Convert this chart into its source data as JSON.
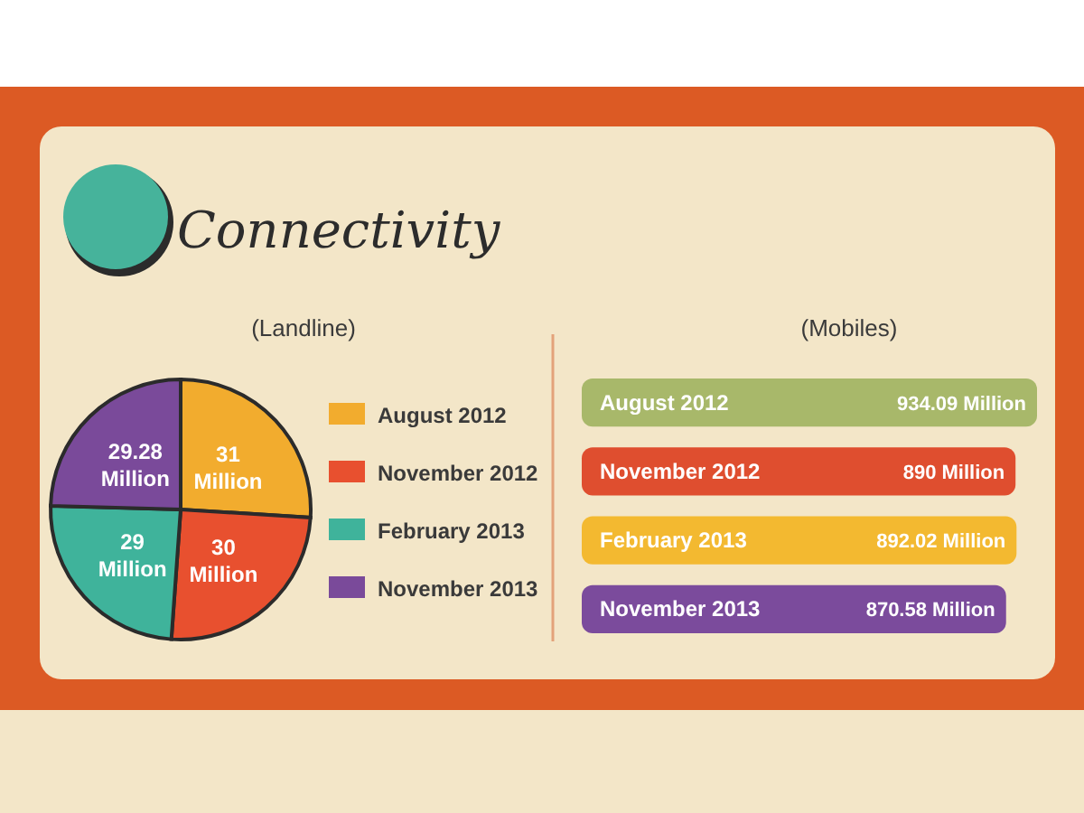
{
  "chart_data": [
    {
      "type": "pie",
      "title": "Connectivity",
      "subtitle": "(Landline)",
      "categories": [
        "August 2012",
        "November 2012",
        "February 2013",
        "November 2013"
      ],
      "values": [
        31,
        30,
        29,
        29.28
      ],
      "value_labels": [
        "31 Million",
        "30 Million",
        "29 Million",
        "29.28 Million"
      ],
      "colors": [
        "#f2ac2e",
        "#e8502f",
        "#3fb39b",
        "#7a4a9a"
      ],
      "legend": "right"
    },
    {
      "type": "bar",
      "orientation": "horizontal",
      "title": "(Mobiles)",
      "categories": [
        "August 2012",
        "November 2012",
        "February 2013",
        "November 2013"
      ],
      "values": [
        934.09,
        890,
        892.02,
        870.58
      ],
      "value_labels": [
        "934.09 Million",
        "890 Million",
        "892.02 Million",
        "870.58 Million"
      ],
      "colors": [
        "#a8b86a",
        "#df4e2f",
        "#f3b930",
        "#7b4b9c"
      ]
    }
  ]
}
